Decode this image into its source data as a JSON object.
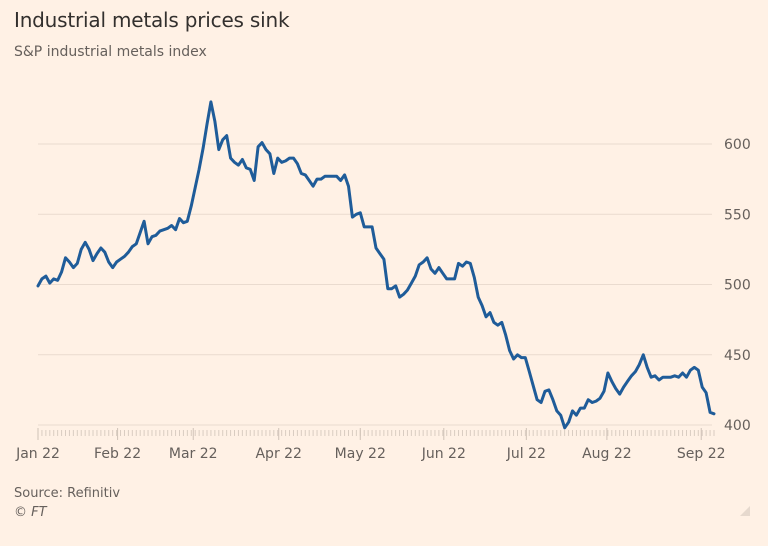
{
  "title": "Industrial metals prices sink",
  "subtitle": "S&P industrial metals index",
  "source": "Source: Refinitiv",
  "copyright": "© FT",
  "colors": {
    "background": "#fff1e5",
    "line": "#1f5c99",
    "grid": "#eadbcf",
    "text": "#66605c",
    "title": "#33302e"
  },
  "chart_data": {
    "type": "line",
    "title": "Industrial metals prices sink",
    "subtitle": "S&P industrial metals index",
    "xlabel": "",
    "ylabel": "",
    "ylim": [
      400,
      630
    ],
    "yticks": [
      400,
      450,
      500,
      550,
      600
    ],
    "y_axis_position": "right",
    "grid": true,
    "legend": "none",
    "x_tick_labels": [
      "Jan 22",
      "Feb 22",
      "Mar 22",
      "Apr 22",
      "May 22",
      "Jun 22",
      "Jul 22",
      "Aug 22",
      "Sep 22"
    ],
    "x_tick_index": [
      0,
      20.25,
      39.5,
      61.25,
      82,
      103.25,
      124.25,
      144.75,
      168.75
    ],
    "series": [
      {
        "name": "S&P industrial metals index",
        "x_unit": "trading-day index from Jan 3 2022",
        "values": [
          499,
          504,
          506,
          501,
          504,
          503,
          509,
          519,
          516,
          512,
          515,
          525,
          530,
          525,
          517,
          522,
          526,
          523,
          516,
          512,
          516,
          518,
          520,
          523,
          527,
          529,
          537,
          545,
          529,
          534,
          535,
          538,
          539,
          540,
          542,
          539,
          547,
          544,
          545,
          556,
          569,
          582,
          597,
          614,
          630,
          616,
          596,
          603,
          606,
          590,
          587,
          585,
          589,
          583,
          582,
          574,
          598,
          601,
          596,
          593,
          579,
          590,
          587,
          588,
          590,
          590,
          586,
          579,
          578,
          574,
          570,
          575,
          575,
          577,
          577,
          577,
          577,
          574,
          578,
          570,
          548,
          550,
          551,
          541,
          541,
          541,
          526,
          522,
          518,
          497,
          497,
          499,
          491,
          493,
          496,
          501,
          506,
          514,
          516,
          519,
          511,
          508,
          512,
          508,
          504,
          504,
          504,
          515,
          513,
          516,
          515,
          505,
          491,
          485,
          477,
          480,
          473,
          471,
          473,
          464,
          453,
          447,
          450,
          448,
          448,
          438,
          428,
          418,
          416,
          424,
          425,
          418,
          410,
          407,
          398,
          402,
          410,
          407,
          412,
          412,
          418,
          416,
          417,
          419,
          424,
          437,
          431,
          426,
          422,
          427,
          431,
          435,
          438,
          443,
          450,
          441,
          434,
          435,
          432,
          434,
          434,
          434,
          435,
          434,
          437,
          434,
          439,
          441,
          439,
          427,
          423,
          409,
          408
        ]
      }
    ]
  }
}
